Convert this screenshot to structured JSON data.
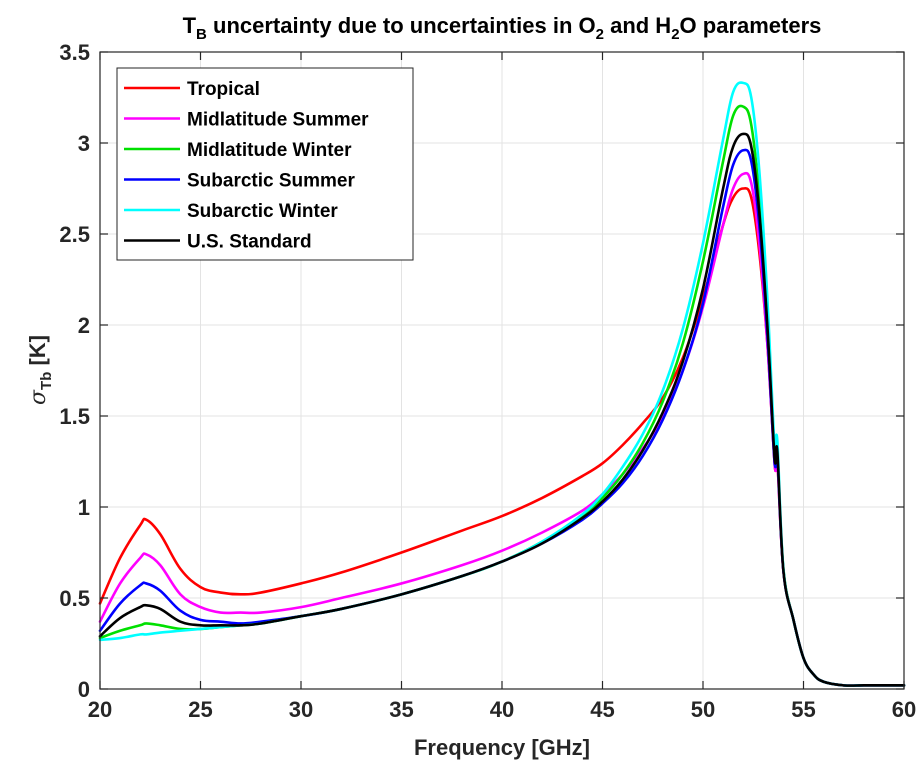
{
  "chart_data": {
    "type": "line",
    "title": {
      "parts": [
        {
          "text": "T",
          "sub": false
        },
        {
          "text": "B",
          "sub": true
        },
        {
          "text": " uncertainty due to uncertainties in O",
          "sub": false
        },
        {
          "text": "2",
          "sub": true
        },
        {
          "text": " and H",
          "sub": false
        },
        {
          "text": "2",
          "sub": true
        },
        {
          "text": "O parameters",
          "sub": false
        }
      ]
    },
    "xlabel": "Frequency [GHz]",
    "ylabel": {
      "symbol": "σ",
      "sub": "Tb",
      "unit": " [K]"
    },
    "xlim": [
      20,
      60
    ],
    "ylim": [
      0,
      3.5
    ],
    "xticks": [
      20,
      25,
      30,
      35,
      40,
      45,
      50,
      55,
      60
    ],
    "yticks": [
      0,
      0.5,
      1,
      1.5,
      2,
      2.5,
      3,
      3.5
    ],
    "ytick_labels": [
      "0",
      "0.5",
      "1",
      "1.5",
      "2",
      "2.5",
      "3",
      "3.5"
    ],
    "grid": true,
    "legend_position": "top-left",
    "series": [
      {
        "name": "Tropical",
        "color": "#ff0000",
        "x": [
          20,
          21,
          22,
          22.3,
          23,
          24,
          25,
          26,
          27,
          28,
          30,
          32,
          35,
          38,
          40,
          42,
          44,
          45,
          46,
          47,
          48,
          49,
          50,
          51,
          51.5,
          52,
          52.4,
          52.8,
          53.2,
          53.5,
          53.6,
          53.7,
          54,
          54.5,
          55,
          55.5,
          56,
          57,
          58,
          59,
          60
        ],
        "y": [
          0.47,
          0.72,
          0.9,
          0.93,
          0.85,
          0.66,
          0.56,
          0.53,
          0.52,
          0.53,
          0.58,
          0.64,
          0.75,
          0.87,
          0.95,
          1.05,
          1.17,
          1.24,
          1.34,
          1.46,
          1.6,
          1.82,
          2.15,
          2.55,
          2.7,
          2.75,
          2.7,
          2.4,
          1.9,
          1.35,
          1.2,
          1.25,
          0.65,
          0.38,
          0.17,
          0.08,
          0.04,
          0.02,
          0.02,
          0.02,
          0.02
        ]
      },
      {
        "name": "Midlatitude Summer",
        "color": "#ff00ff",
        "x": [
          20,
          21,
          22,
          22.3,
          23,
          24,
          25,
          26,
          27,
          28,
          30,
          32,
          35,
          38,
          40,
          42,
          44,
          45,
          46,
          47,
          48,
          49,
          50,
          51,
          51.5,
          52,
          52.4,
          52.8,
          53.2,
          53.5,
          53.6,
          53.7,
          54,
          54.5,
          55,
          55.5,
          56,
          57,
          58,
          59,
          60
        ],
        "y": [
          0.37,
          0.58,
          0.72,
          0.74,
          0.68,
          0.52,
          0.45,
          0.42,
          0.42,
          0.42,
          0.45,
          0.5,
          0.58,
          0.68,
          0.76,
          0.86,
          0.98,
          1.07,
          1.18,
          1.32,
          1.5,
          1.75,
          2.1,
          2.55,
          2.75,
          2.83,
          2.78,
          2.45,
          1.9,
          1.35,
          1.2,
          1.25,
          0.65,
          0.38,
          0.17,
          0.08,
          0.04,
          0.02,
          0.02,
          0.02,
          0.02
        ]
      },
      {
        "name": "Midlatitude Winter",
        "color": "#00e000",
        "x": [
          20,
          21,
          22,
          22.3,
          23,
          24,
          25,
          26,
          27,
          28,
          30,
          32,
          35,
          38,
          40,
          42,
          44,
          45,
          46,
          47,
          48,
          49,
          50,
          51,
          51.5,
          52,
          52.4,
          52.8,
          53.2,
          53.5,
          53.6,
          53.7,
          54,
          54.5,
          55,
          55.5,
          56,
          57,
          58,
          59,
          60
        ],
        "y": [
          0.28,
          0.32,
          0.35,
          0.36,
          0.35,
          0.33,
          0.33,
          0.34,
          0.35,
          0.36,
          0.4,
          0.44,
          0.52,
          0.62,
          0.7,
          0.81,
          0.95,
          1.05,
          1.18,
          1.35,
          1.58,
          1.9,
          2.35,
          2.9,
          3.15,
          3.2,
          3.1,
          2.7,
          2.05,
          1.4,
          1.25,
          1.3,
          0.66,
          0.38,
          0.17,
          0.08,
          0.04,
          0.02,
          0.02,
          0.02,
          0.02
        ]
      },
      {
        "name": "Subarctic Summer",
        "color": "#0000ff",
        "x": [
          20,
          21,
          22,
          22.3,
          23,
          24,
          25,
          26,
          27,
          28,
          30,
          32,
          35,
          38,
          40,
          42,
          44,
          45,
          46,
          47,
          48,
          49,
          50,
          51,
          51.5,
          52,
          52.4,
          52.8,
          53.2,
          53.5,
          53.6,
          53.7,
          54,
          54.5,
          55,
          55.5,
          56,
          57,
          58,
          59,
          60
        ],
        "y": [
          0.32,
          0.47,
          0.57,
          0.58,
          0.54,
          0.43,
          0.38,
          0.37,
          0.36,
          0.37,
          0.4,
          0.44,
          0.52,
          0.62,
          0.7,
          0.8,
          0.93,
          1.02,
          1.13,
          1.28,
          1.48,
          1.75,
          2.12,
          2.65,
          2.88,
          2.96,
          2.9,
          2.55,
          1.95,
          1.35,
          1.22,
          1.28,
          0.65,
          0.38,
          0.17,
          0.08,
          0.04,
          0.02,
          0.02,
          0.02,
          0.02
        ]
      },
      {
        "name": "Subarctic Winter",
        "color": "#00ffff",
        "x": [
          20,
          21,
          22,
          22.3,
          23,
          24,
          25,
          26,
          27,
          28,
          30,
          32,
          35,
          38,
          40,
          42,
          44,
          45,
          46,
          47,
          48,
          49,
          50,
          51,
          51.5,
          52,
          52.4,
          52.8,
          53.2,
          53.5,
          53.6,
          53.7,
          54,
          54.5,
          55,
          55.5,
          56,
          57,
          58,
          59,
          60
        ],
        "y": [
          0.27,
          0.28,
          0.3,
          0.3,
          0.31,
          0.32,
          0.33,
          0.34,
          0.35,
          0.36,
          0.4,
          0.44,
          0.52,
          0.62,
          0.7,
          0.81,
          0.96,
          1.07,
          1.22,
          1.4,
          1.64,
          1.98,
          2.45,
          3.02,
          3.28,
          3.33,
          3.25,
          2.85,
          2.15,
          1.45,
          1.3,
          1.36,
          0.66,
          0.38,
          0.17,
          0.08,
          0.04,
          0.02,
          0.02,
          0.02,
          0.02
        ]
      },
      {
        "name": "U.S. Standard",
        "color": "#000000",
        "x": [
          20,
          21,
          22,
          22.3,
          23,
          24,
          25,
          26,
          27,
          28,
          30,
          32,
          35,
          38,
          40,
          42,
          44,
          45,
          46,
          47,
          48,
          49,
          50,
          51,
          51.5,
          52,
          52.4,
          52.8,
          53.2,
          53.5,
          53.6,
          53.7,
          54,
          54.5,
          55,
          55.5,
          56,
          57,
          58,
          59,
          60
        ],
        "y": [
          0.29,
          0.39,
          0.45,
          0.46,
          0.44,
          0.37,
          0.35,
          0.35,
          0.35,
          0.36,
          0.4,
          0.44,
          0.52,
          0.62,
          0.7,
          0.8,
          0.94,
          1.03,
          1.15,
          1.31,
          1.52,
          1.8,
          2.2,
          2.75,
          2.98,
          3.05,
          2.98,
          2.62,
          2.0,
          1.38,
          1.24,
          1.3,
          0.65,
          0.38,
          0.17,
          0.08,
          0.04,
          0.02,
          0.02,
          0.02,
          0.02
        ]
      }
    ]
  }
}
